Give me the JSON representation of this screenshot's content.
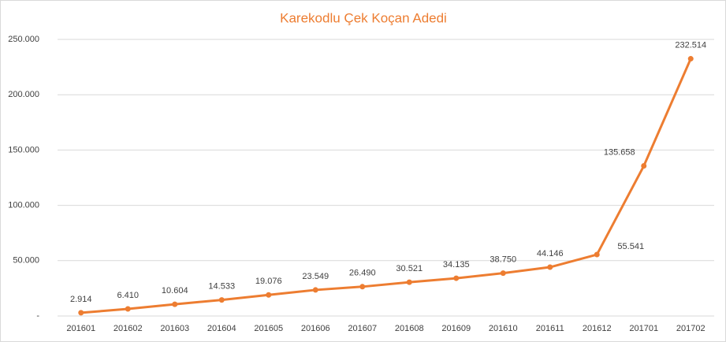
{
  "chart_data": {
    "type": "line",
    "title": "Karekodlu Çek Koçan Adedi",
    "categories": [
      "201601",
      "201602",
      "201603",
      "201604",
      "201605",
      "201606",
      "201607",
      "201608",
      "201609",
      "201610",
      "201611",
      "201612",
      "201701",
      "201702"
    ],
    "series": [
      {
        "color": "#ed7d31",
        "values": [
          2914,
          6410,
          10604,
          14533,
          19076,
          23549,
          26490,
          30521,
          34135,
          38750,
          44146,
          55541,
          135658,
          232514
        ],
        "value_labels": [
          "2.914",
          "6.410",
          "10.604",
          "14.533",
          "19.076",
          "23.549",
          "26.490",
          "30.521",
          "34.135",
          "38.750",
          "44.146",
          "55.541",
          "135.658",
          "232.514"
        ]
      }
    ],
    "ylim": [
      0,
      250000
    ],
    "yticks": [
      {
        "value": 0,
        "label": "-"
      },
      {
        "value": 50000,
        "label": "50.000"
      },
      {
        "value": 100000,
        "label": "100.000"
      },
      {
        "value": 150000,
        "label": "150.000"
      },
      {
        "value": 200000,
        "label": "200.000"
      },
      {
        "value": 250000,
        "label": "250.000"
      }
    ],
    "grid": true
  }
}
